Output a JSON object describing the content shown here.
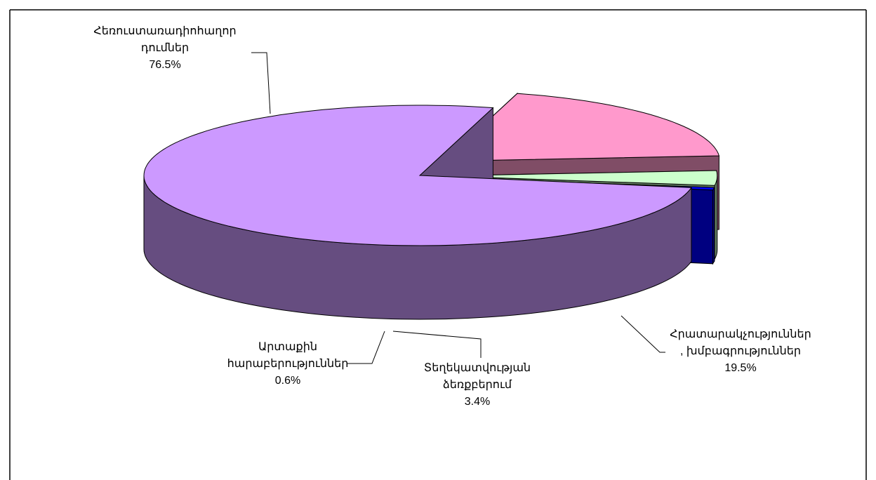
{
  "chart_data": {
    "type": "pie3d",
    "categories": [
      "Հեռուստառադիոհաղոր\nդումներ",
      "Հրատարակչություններ\n, խմբագրություններ",
      "Տեղեկատվության\nձեռքբերում",
      "Արտաքին\nհարաբերություններ"
    ],
    "values": [
      76.5,
      19.5,
      3.4,
      0.6
    ],
    "value_labels": [
      "76.5%",
      "19.5%",
      "3.4%",
      "0.6%"
    ],
    "colors": [
      "#cc99ff",
      "#ff99cc",
      "#ccffcc",
      "#0000ff"
    ]
  }
}
